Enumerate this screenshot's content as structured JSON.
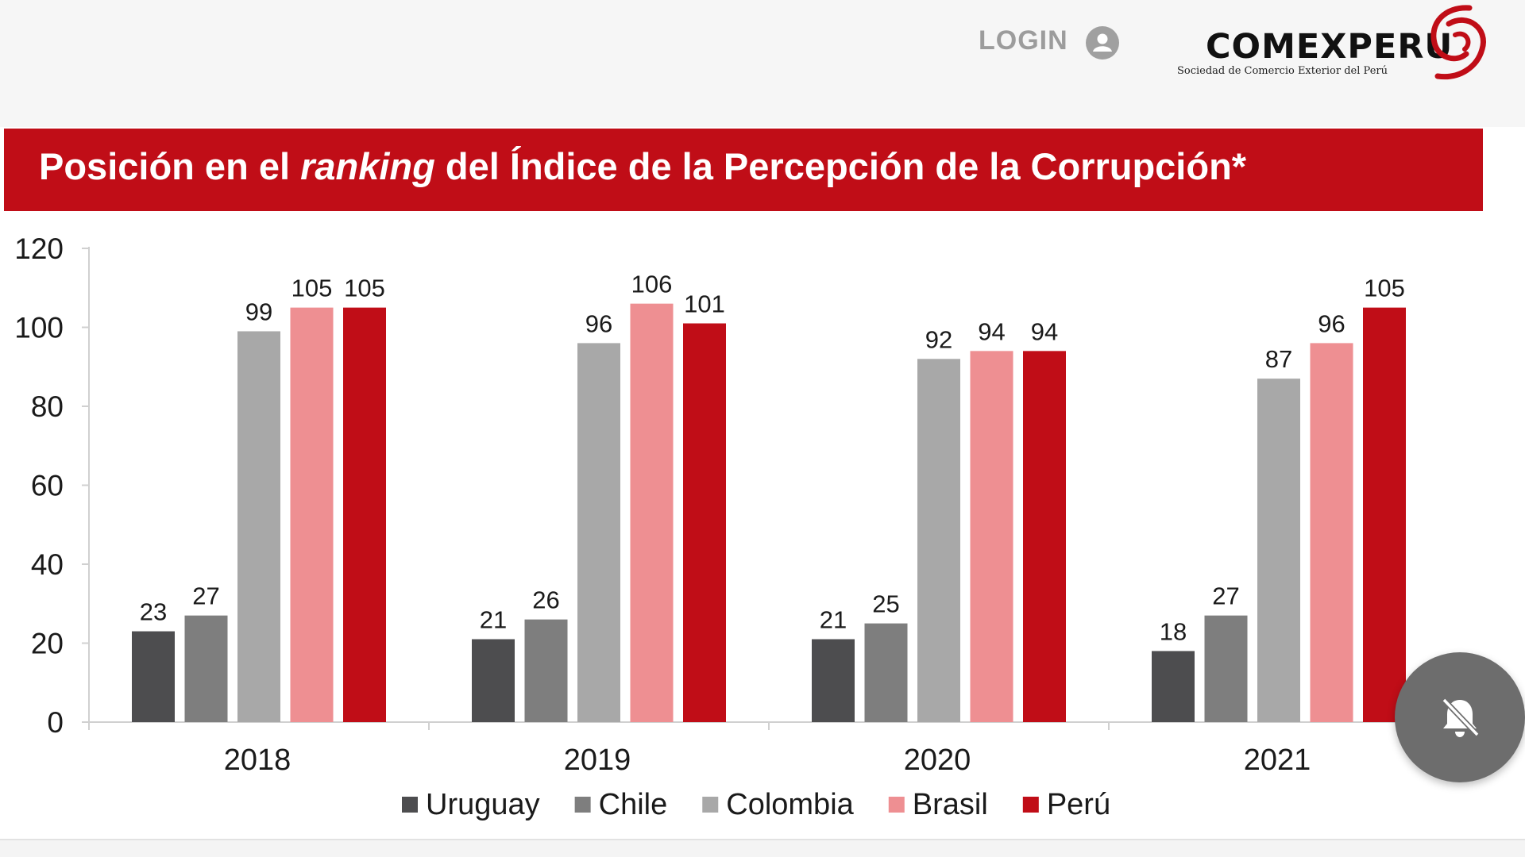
{
  "header": {
    "login_label": "LOGIN",
    "user_icon": "user-circle-icon",
    "logo": {
      "name": "COMEXPERU",
      "subtitle": "Sociedad de Comercio Exterior del Perú"
    }
  },
  "title": {
    "part1": "Posición en el ",
    "part2": "ranking",
    "part3": " del Índice de la Percepción de la Corrupción*"
  },
  "fab": {
    "icon": "bell-off-icon"
  },
  "colors": {
    "accent": "#c00d17",
    "uruguay": "#4d4d4f",
    "chile": "#7e7e7e",
    "colombia": "#a8a8a8",
    "brasil": "#ee8f92",
    "peru": "#c00d17"
  },
  "chart_data": {
    "type": "bar",
    "title": "Posición en el ranking del Índice de la Percepción de la Corrupción*",
    "xlabel": "",
    "ylabel": "",
    "categories": [
      "2018",
      "2019",
      "2020",
      "2021"
    ],
    "ylim": [
      0,
      120
    ],
    "yticks": [
      "0",
      "20",
      "40",
      "60",
      "80",
      "100",
      "120"
    ],
    "grid": false,
    "legend_position": "bottom",
    "series": [
      {
        "name": "Uruguay",
        "color": "#4d4d4f",
        "values": [
          23,
          21,
          21,
          18
        ]
      },
      {
        "name": "Chile",
        "color": "#7e7e7e",
        "values": [
          27,
          26,
          25,
          27
        ]
      },
      {
        "name": "Colombia",
        "color": "#a8a8a8",
        "values": [
          99,
          96,
          92,
          87
        ]
      },
      {
        "name": "Brasil",
        "color": "#ee8f92",
        "values": [
          105,
          106,
          94,
          96
        ]
      },
      {
        "name": "Perú",
        "color": "#c00d17",
        "values": [
          105,
          101,
          94,
          105
        ]
      }
    ]
  }
}
